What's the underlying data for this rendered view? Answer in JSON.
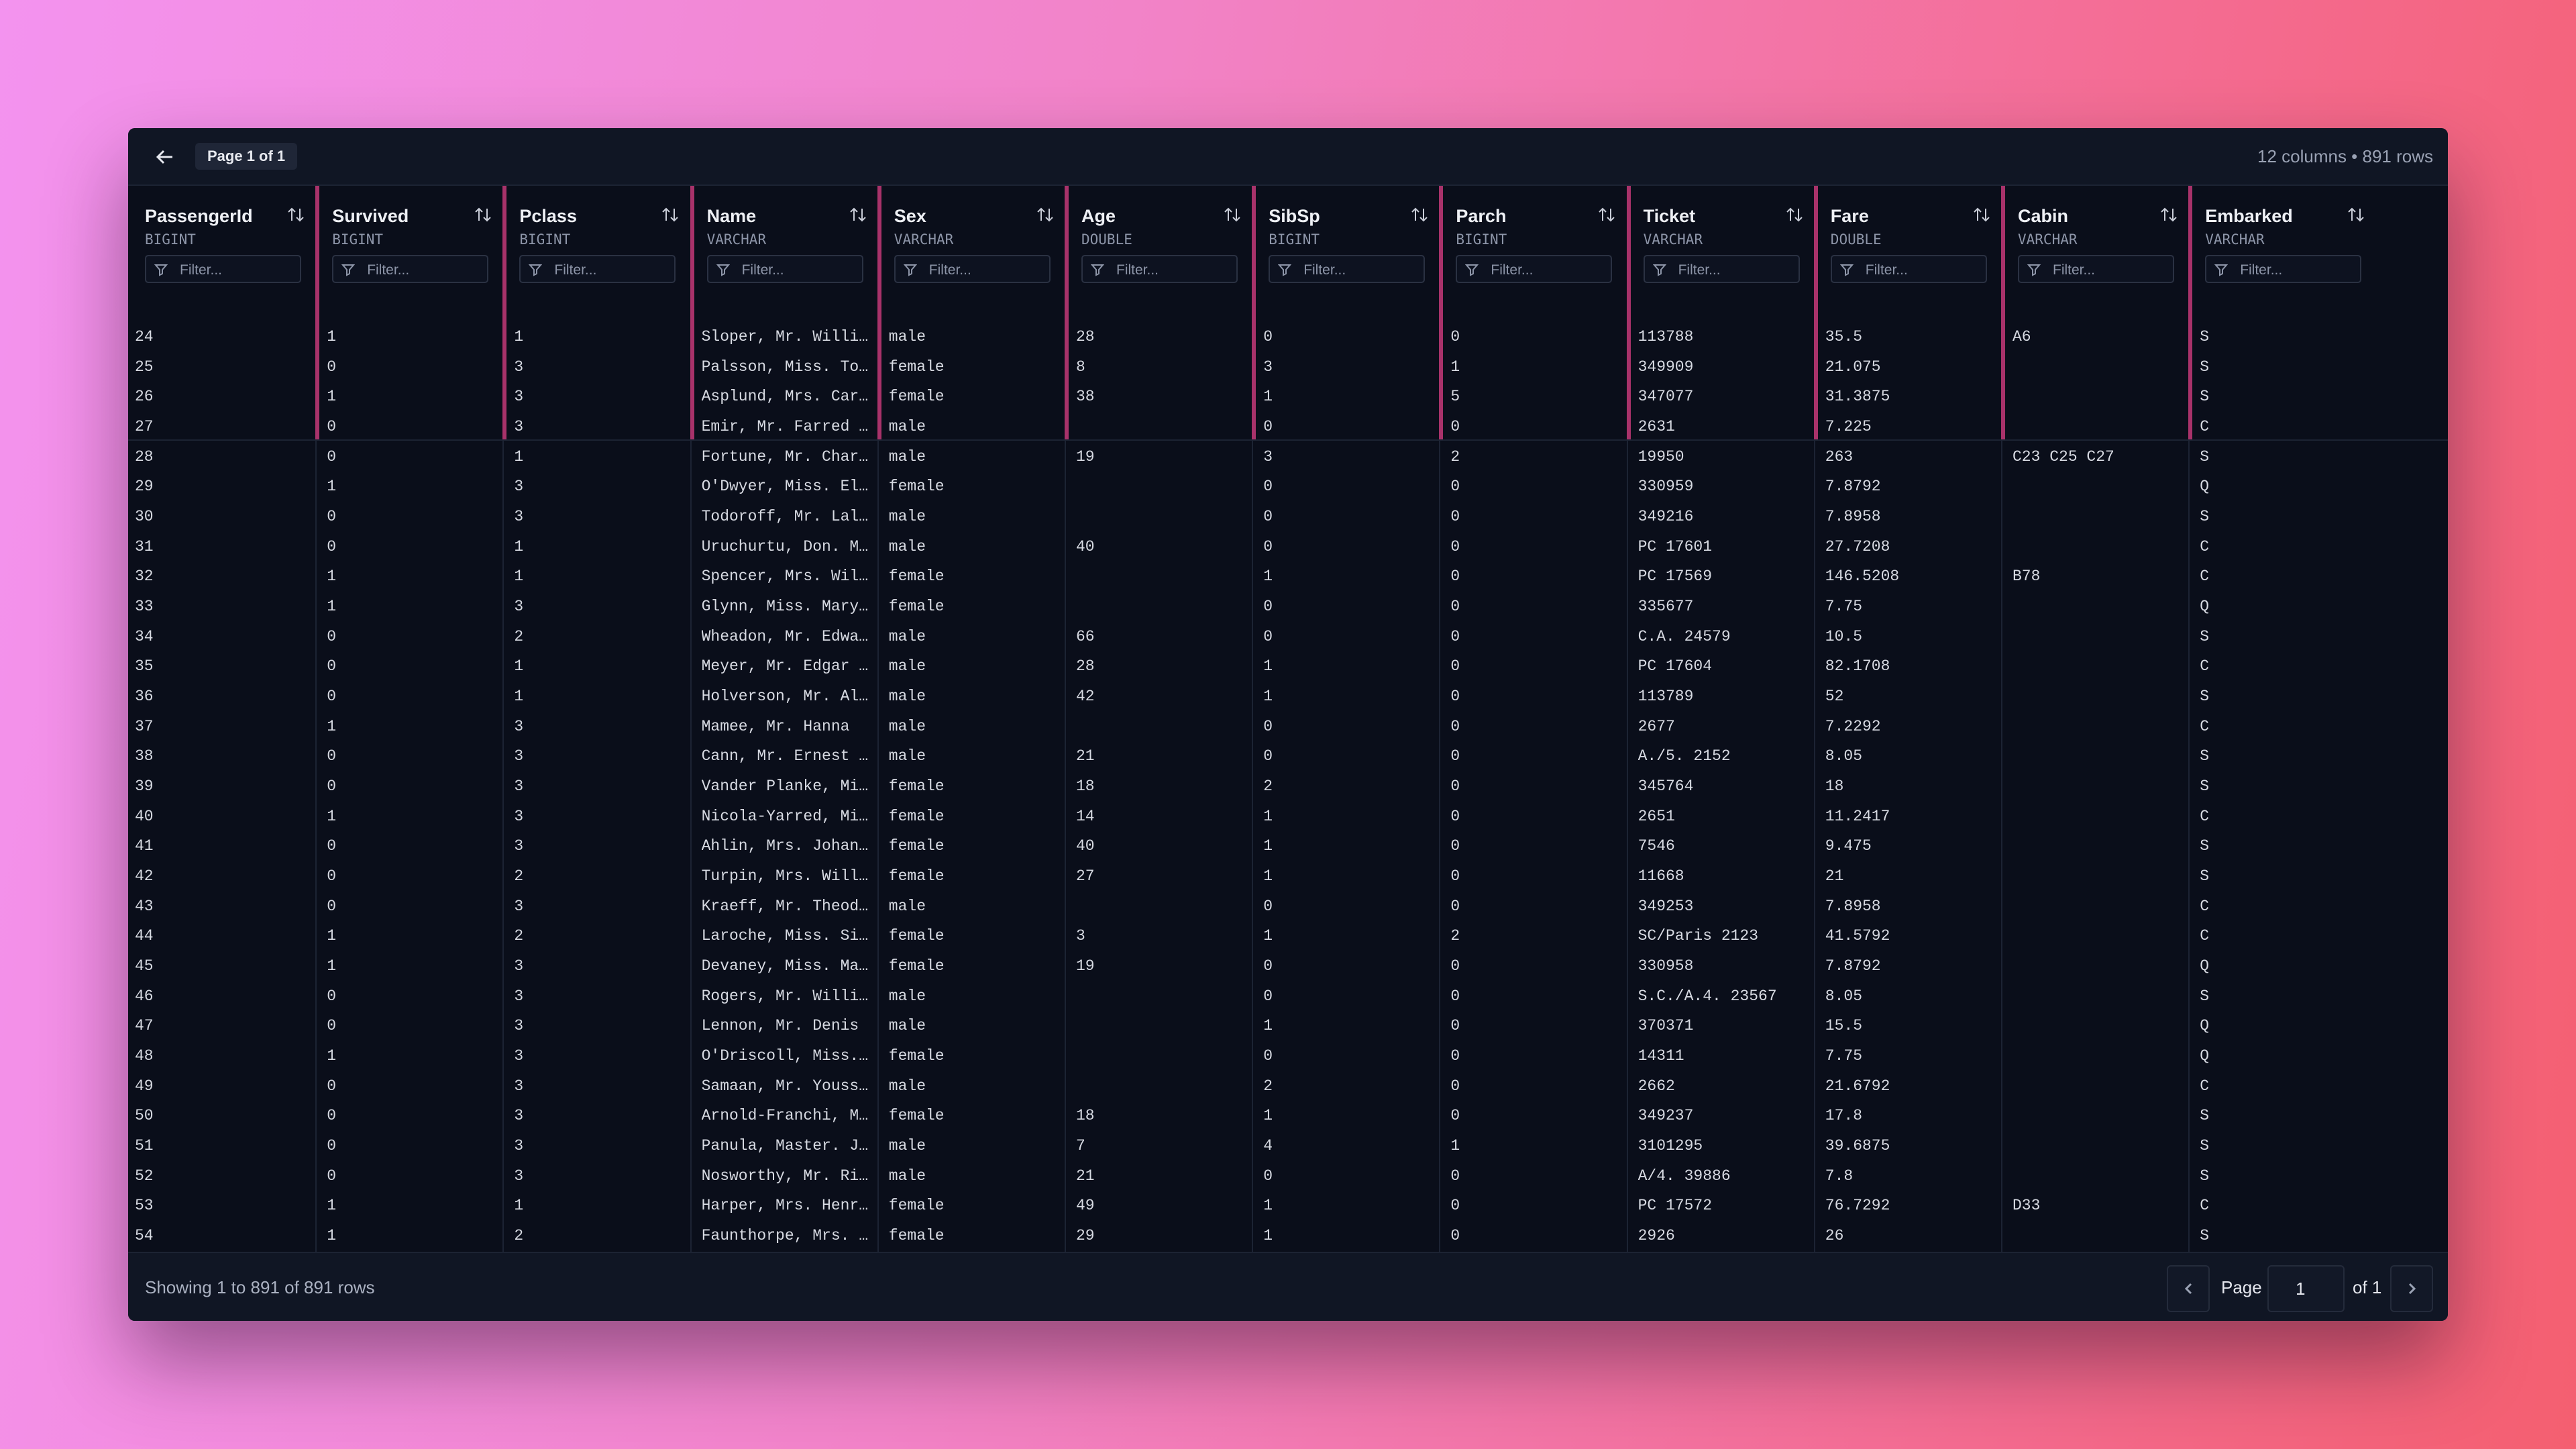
{
  "header": {
    "page_badge": "Page 1 of 1",
    "summary": "12 columns • 891 rows"
  },
  "columns": [
    {
      "name": "PassengerId",
      "type": "BIGINT"
    },
    {
      "name": "Survived",
      "type": "BIGINT"
    },
    {
      "name": "Pclass",
      "type": "BIGINT"
    },
    {
      "name": "Name",
      "type": "VARCHAR"
    },
    {
      "name": "Sex",
      "type": "VARCHAR"
    },
    {
      "name": "Age",
      "type": "DOUBLE"
    },
    {
      "name": "SibSp",
      "type": "BIGINT"
    },
    {
      "name": "Parch",
      "type": "BIGINT"
    },
    {
      "name": "Ticket",
      "type": "VARCHAR"
    },
    {
      "name": "Fare",
      "type": "DOUBLE"
    },
    {
      "name": "Cabin",
      "type": "VARCHAR"
    },
    {
      "name": "Embarked",
      "type": "VARCHAR"
    }
  ],
  "filter_placeholder": "Filter...",
  "rows": [
    [
      "24",
      "1",
      "1",
      "Sloper, Mr. Willi…",
      "male",
      "28",
      "0",
      "0",
      "113788",
      "35.5",
      "A6",
      "S"
    ],
    [
      "25",
      "0",
      "3",
      "Palsson, Miss. To…",
      "female",
      "8",
      "3",
      "1",
      "349909",
      "21.075",
      null,
      "S"
    ],
    [
      "26",
      "1",
      "3",
      "Asplund, Mrs. Car…",
      "female",
      "38",
      "1",
      "5",
      "347077",
      "31.3875",
      null,
      "S"
    ],
    [
      "27",
      "0",
      "3",
      "Emir, Mr. Farred …",
      "male",
      null,
      "0",
      "0",
      "2631",
      "7.225",
      null,
      "C"
    ],
    [
      "28",
      "0",
      "1",
      "Fortune, Mr. Char…",
      "male",
      "19",
      "3",
      "2",
      "19950",
      "263",
      "C23 C25 C27",
      "S"
    ],
    [
      "29",
      "1",
      "3",
      "O'Dwyer, Miss. El…",
      "female",
      null,
      "0",
      "0",
      "330959",
      "7.8792",
      null,
      "Q"
    ],
    [
      "30",
      "0",
      "3",
      "Todoroff, Mr. Lal…",
      "male",
      null,
      "0",
      "0",
      "349216",
      "7.8958",
      null,
      "S"
    ],
    [
      "31",
      "0",
      "1",
      "Uruchurtu, Don. M…",
      "male",
      "40",
      "0",
      "0",
      "PC 17601",
      "27.7208",
      null,
      "C"
    ],
    [
      "32",
      "1",
      "1",
      "Spencer, Mrs. Wil…",
      "female",
      null,
      "1",
      "0",
      "PC 17569",
      "146.5208",
      "B78",
      "C"
    ],
    [
      "33",
      "1",
      "3",
      "Glynn, Miss. Mary…",
      "female",
      null,
      "0",
      "0",
      "335677",
      "7.75",
      null,
      "Q"
    ],
    [
      "34",
      "0",
      "2",
      "Wheadon, Mr. Edwa…",
      "male",
      "66",
      "0",
      "0",
      "C.A. 24579",
      "10.5",
      null,
      "S"
    ],
    [
      "35",
      "0",
      "1",
      "Meyer, Mr. Edgar …",
      "male",
      "28",
      "1",
      "0",
      "PC 17604",
      "82.1708",
      null,
      "C"
    ],
    [
      "36",
      "0",
      "1",
      "Holverson, Mr. Al…",
      "male",
      "42",
      "1",
      "0",
      "113789",
      "52",
      null,
      "S"
    ],
    [
      "37",
      "1",
      "3",
      "Mamee, Mr. Hanna",
      "male",
      null,
      "0",
      "0",
      "2677",
      "7.2292",
      null,
      "C"
    ],
    [
      "38",
      "0",
      "3",
      "Cann, Mr. Ernest …",
      "male",
      "21",
      "0",
      "0",
      "A./5. 2152",
      "8.05",
      null,
      "S"
    ],
    [
      "39",
      "0",
      "3",
      "Vander Planke, Mi…",
      "female",
      "18",
      "2",
      "0",
      "345764",
      "18",
      null,
      "S"
    ],
    [
      "40",
      "1",
      "3",
      "Nicola-Yarred, Mi…",
      "female",
      "14",
      "1",
      "0",
      "2651",
      "11.2417",
      null,
      "C"
    ],
    [
      "41",
      "0",
      "3",
      "Ahlin, Mrs. Johan…",
      "female",
      "40",
      "1",
      "0",
      "7546",
      "9.475",
      null,
      "S"
    ],
    [
      "42",
      "0",
      "2",
      "Turpin, Mrs. Will…",
      "female",
      "27",
      "1",
      "0",
      "11668",
      "21",
      null,
      "S"
    ],
    [
      "43",
      "0",
      "3",
      "Kraeff, Mr. Theod…",
      "male",
      null,
      "0",
      "0",
      "349253",
      "7.8958",
      null,
      "C"
    ],
    [
      "44",
      "1",
      "2",
      "Laroche, Miss. Si…",
      "female",
      "3",
      "1",
      "2",
      "SC/Paris 2123",
      "41.5792",
      null,
      "C"
    ],
    [
      "45",
      "1",
      "3",
      "Devaney, Miss. Ma…",
      "female",
      "19",
      "0",
      "0",
      "330958",
      "7.8792",
      null,
      "Q"
    ],
    [
      "46",
      "0",
      "3",
      "Rogers, Mr. Willi…",
      "male",
      null,
      "0",
      "0",
      "S.C./A.4. 23567",
      "8.05",
      null,
      "S"
    ],
    [
      "47",
      "0",
      "3",
      "Lennon, Mr. Denis",
      "male",
      null,
      "1",
      "0",
      "370371",
      "15.5",
      null,
      "Q"
    ],
    [
      "48",
      "1",
      "3",
      "O'Driscoll, Miss.…",
      "female",
      null,
      "0",
      "0",
      "14311",
      "7.75",
      null,
      "Q"
    ],
    [
      "49",
      "0",
      "3",
      "Samaan, Mr. Youss…",
      "male",
      null,
      "2",
      "0",
      "2662",
      "21.6792",
      null,
      "C"
    ],
    [
      "50",
      "0",
      "3",
      "Arnold-Franchi, M…",
      "female",
      "18",
      "1",
      "0",
      "349237",
      "17.8",
      null,
      "S"
    ],
    [
      "51",
      "0",
      "3",
      "Panula, Master. J…",
      "male",
      "7",
      "4",
      "1",
      "3101295",
      "39.6875",
      null,
      "S"
    ],
    [
      "52",
      "0",
      "3",
      "Nosworthy, Mr. Ri…",
      "male",
      "21",
      "0",
      "0",
      "A/4. 39886",
      "7.8",
      null,
      "S"
    ],
    [
      "53",
      "1",
      "1",
      "Harper, Mrs. Henr…",
      "female",
      "49",
      "1",
      "0",
      "PC 17572",
      "76.7292",
      "D33",
      "C"
    ],
    [
      "54",
      "1",
      "2",
      "Faunthorpe, Mrs. …",
      "female",
      "29",
      "1",
      "0",
      "2926",
      "26",
      null,
      "S"
    ]
  ],
  "footer": {
    "showing": "Showing 1 to 891 of 891 rows",
    "page_label": "Page",
    "page_input": "1",
    "page_total": "of 1"
  }
}
